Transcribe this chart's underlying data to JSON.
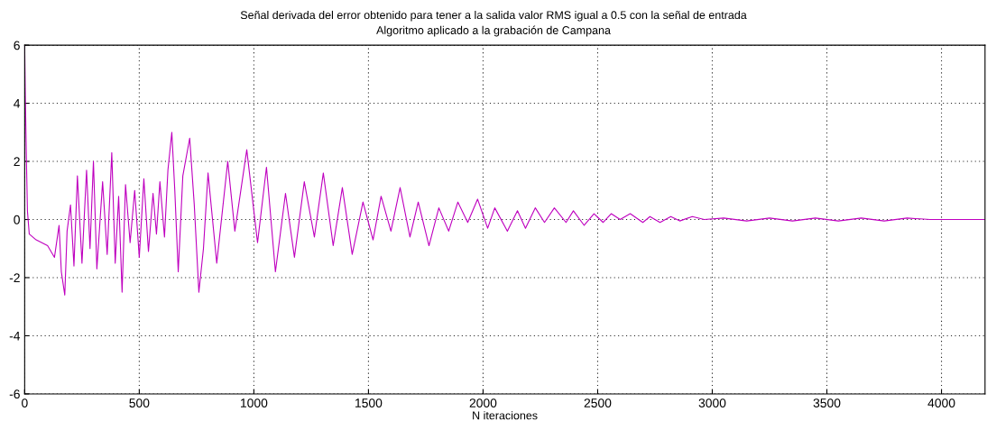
{
  "chart_data": {
    "type": "line",
    "title": "Señal derivada del error obtenido para tener a la salida valor RMS igual a 0.5 con la señal de entrada",
    "subtitle": "Algoritmo aplicado a la grabación de Campana",
    "xlabel": "N iteraciones",
    "x": [
      0,
      3,
      8,
      12,
      20,
      50,
      100,
      130,
      150,
      160,
      175,
      185,
      200,
      215,
      230,
      250,
      270,
      285,
      300,
      315,
      340,
      360,
      380,
      395,
      410,
      425,
      440,
      460,
      480,
      500,
      520,
      540,
      560,
      575,
      590,
      610,
      625,
      642,
      655,
      670,
      690,
      720,
      740,
      760,
      780,
      800,
      838,
      886,
      917,
      969,
      1016,
      1055,
      1094,
      1138,
      1177,
      1220,
      1264,
      1303,
      1346,
      1386,
      1429,
      1476,
      1520,
      1555,
      1598,
      1638,
      1681,
      1717,
      1764,
      1807,
      1850,
      1890,
      1933,
      1976,
      2020,
      2051,
      2106,
      2150,
      2185,
      2228,
      2268,
      2311,
      2362,
      2394,
      2441,
      2484,
      2524,
      2559,
      2598,
      2642,
      2697,
      2728,
      2772,
      2819,
      2858,
      2913,
      2965,
      3050,
      3150,
      3250,
      3350,
      3450,
      3550,
      3650,
      3750,
      3850,
      3950,
      4000,
      4100,
      4190
    ],
    "series": [
      {
        "color": "#bf00bf",
        "values": [
          6,
          4.2,
          1.9,
          0.3,
          -0.5,
          -0.7,
          -0.9,
          -1.3,
          -0.2,
          -1.8,
          -2.6,
          -0.4,
          0.5,
          -1.6,
          1.5,
          -1.5,
          1.7,
          -1.0,
          2.0,
          -1.7,
          1.3,
          -1.2,
          2.3,
          -1.5,
          0.8,
          -2.5,
          1.2,
          -0.8,
          1.0,
          -1.3,
          1.4,
          -1.1,
          0.9,
          -0.5,
          1.3,
          -0.6,
          1.7,
          3.0,
          1.0,
          -1.8,
          1.5,
          2.8,
          0.5,
          -2.5,
          -1.0,
          1.6,
          -1.5,
          2.0,
          -0.4,
          2.4,
          -0.8,
          1.8,
          -1.8,
          0.9,
          -1.3,
          1.3,
          -0.6,
          1.6,
          -0.9,
          1.1,
          -1.2,
          0.6,
          -0.7,
          0.8,
          -0.4,
          1.1,
          -0.6,
          0.6,
          -0.9,
          0.4,
          -0.4,
          0.6,
          -0.1,
          0.7,
          -0.3,
          0.4,
          -0.4,
          0.3,
          -0.3,
          0.4,
          -0.1,
          0.4,
          -0.1,
          0.3,
          -0.2,
          0.2,
          -0.1,
          0.2,
          0.0,
          0.2,
          -0.1,
          0.1,
          -0.1,
          0.1,
          -0.05,
          0.1,
          0.0,
          0.05,
          -0.05,
          0.05,
          -0.05,
          0.05,
          -0.05,
          0.05,
          -0.05,
          0.05,
          0.0,
          0.0,
          0.0,
          0.0
        ]
      }
    ],
    "xlim": [
      0,
      4190
    ],
    "ylim": [
      -6,
      6
    ],
    "xticks": [
      0,
      500,
      1000,
      1500,
      2000,
      2500,
      3000,
      3500,
      4000
    ],
    "yticks": [
      -6,
      -4,
      -2,
      0,
      2,
      4,
      6
    ],
    "grid": true,
    "marker": "none",
    "line_style": "solid"
  }
}
